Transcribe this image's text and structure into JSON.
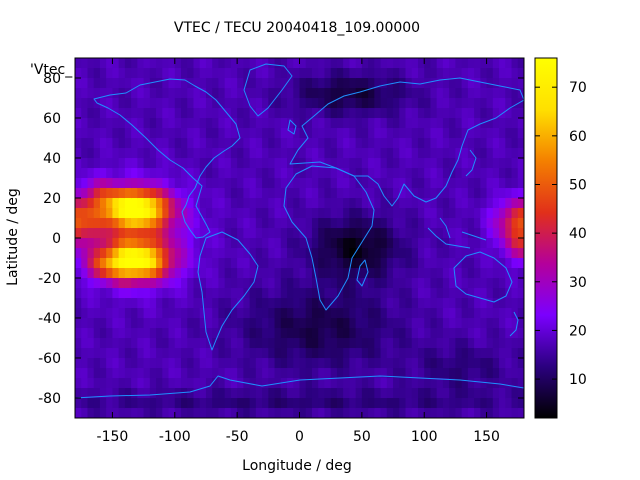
{
  "chart_data": {
    "type": "heatmap",
    "title": "VTEC / TECU 20040418_109.00000",
    "xlabel": "Longitude / deg",
    "ylabel": "Latitude / deg",
    "key_label": "'Vtec_",
    "xlim": [
      -180,
      180
    ],
    "ylim": [
      -90,
      90
    ],
    "xticks": [
      -150,
      -100,
      -50,
      0,
      50,
      100,
      150
    ],
    "yticks": [
      -80,
      -60,
      -40,
      -20,
      0,
      20,
      40,
      60,
      80
    ],
    "colorbar": {
      "range": [
        2,
        76
      ],
      "ticks": [
        10,
        20,
        30,
        40,
        50,
        60,
        70
      ]
    },
    "grid": false,
    "colormap": [
      "#000000",
      "#2b007f",
      "#7b00fe",
      "#b4009b",
      "#e1301a",
      "#f48000",
      "#ffe000",
      "#ffff00"
    ],
    "coastline_color": "#1e90ff",
    "field": {
      "background": 17,
      "features": [
        {
          "lon": -132,
          "lat": 15,
          "sx": 26,
          "sy": 9,
          "v": 52,
          "note": "northern anomaly crest"
        },
        {
          "lon": -132,
          "lat": -12,
          "sx": 26,
          "sy": 9,
          "v": 50,
          "note": "southern anomaly crest"
        },
        {
          "lon": -130,
          "lat": 2,
          "sx": 38,
          "sy": 22,
          "v": 20
        },
        {
          "lon": -160,
          "lat": 22,
          "sx": 16,
          "sy": 8,
          "v": 12
        },
        {
          "lon": -158,
          "lat": -14,
          "sx": 16,
          "sy": 7,
          "v": 10
        },
        {
          "lon": 178,
          "lat": 8,
          "sx": 20,
          "sy": 11,
          "v": 30
        },
        {
          "lon": 178,
          "lat": -5,
          "sx": 14,
          "sy": 8,
          "v": 14
        },
        {
          "lon": -182,
          "lat": 8,
          "sx": 20,
          "sy": 11,
          "v": 30
        },
        {
          "lon": 45,
          "lat": -5,
          "sx": 35,
          "sy": 15,
          "v": -13
        },
        {
          "lon": 15,
          "lat": -45,
          "sx": 60,
          "sy": 20,
          "v": -9
        },
        {
          "lon": 40,
          "lat": 72,
          "sx": 45,
          "sy": 10,
          "v": -10
        },
        {
          "lon": 0,
          "lat": -82,
          "sx": 200,
          "sy": 6,
          "v": -5
        },
        {
          "lon": 130,
          "lat": -65,
          "sx": 40,
          "sy": 12,
          "v": -5
        }
      ]
    }
  }
}
